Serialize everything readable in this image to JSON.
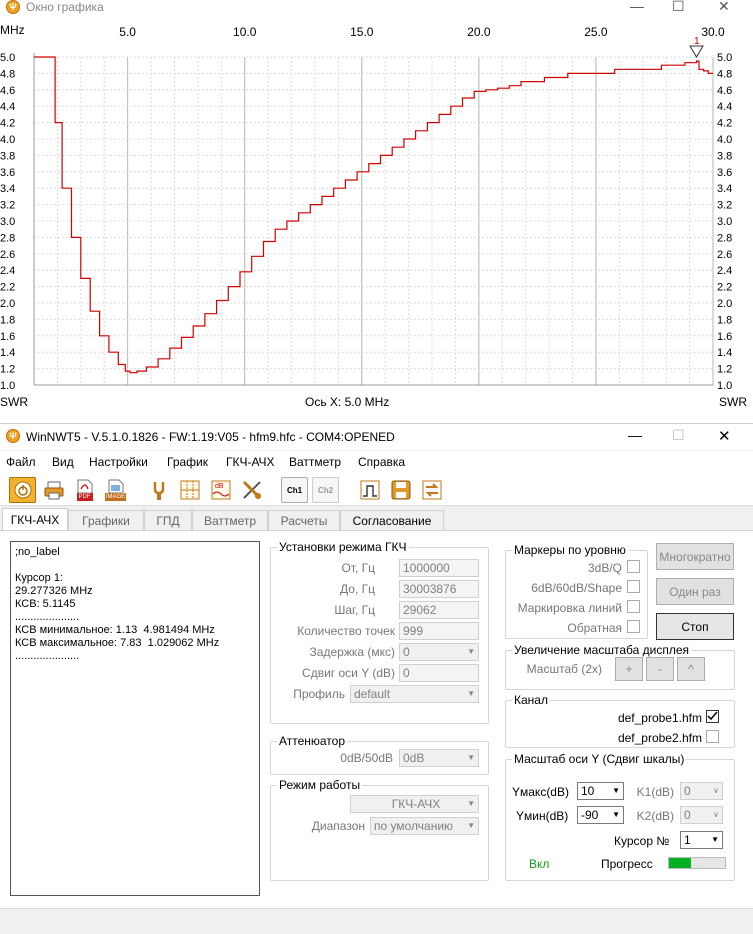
{
  "graph_window": {
    "title": "Окно графика",
    "x_unit": "MHz",
    "left_axis_unit": "SWR",
    "right_axis_unit": "SWR",
    "axis_readout": "Ось X: 5.0 MHz",
    "marker_label": "1"
  },
  "chart_data": {
    "type": "line",
    "xlim": [
      1.0,
      30.0
    ],
    "ylim": [
      1.0,
      5.0
    ],
    "x_ticks": [
      "5.0",
      "10.0",
      "15.0",
      "20.0",
      "25.0",
      "30.0"
    ],
    "y_ticks": [
      "1.0",
      "1.2",
      "1.4",
      "1.6",
      "1.8",
      "2.0",
      "2.2",
      "2.4",
      "2.6",
      "2.8",
      "3.0",
      "3.2",
      "3.4",
      "3.6",
      "3.8",
      "4.0",
      "4.2",
      "4.4",
      "4.6",
      "4.8",
      "5.0"
    ],
    "grid": true,
    "series": [
      {
        "color": "#d00000",
        "x": [
          1.0,
          1.8,
          1.9,
          2.2,
          2.6,
          3.0,
          3.4,
          3.8,
          4.2,
          4.6,
          4.9,
          5.1,
          5.4,
          5.8,
          6.3,
          6.8,
          7.3,
          7.8,
          8.3,
          8.8,
          9.3,
          9.8,
          10.3,
          10.8,
          11.3,
          11.8,
          12.3,
          12.8,
          13.3,
          13.8,
          14.3,
          14.8,
          15.3,
          15.8,
          16.3,
          16.8,
          17.3,
          17.8,
          18.3,
          18.8,
          19.3,
          19.8,
          20.3,
          20.8,
          21.3,
          21.8,
          22.3,
          22.8,
          23.3,
          23.8,
          24.3,
          24.8,
          25.3,
          25.8,
          26.3,
          26.8,
          27.3,
          27.8,
          28.3,
          28.8,
          29.3,
          29.4,
          29.6,
          29.8,
          30.0
        ],
        "y": [
          5.0,
          5.0,
          4.2,
          3.4,
          2.8,
          2.3,
          1.9,
          1.6,
          1.4,
          1.25,
          1.17,
          1.15,
          1.17,
          1.22,
          1.32,
          1.45,
          1.58,
          1.72,
          1.87,
          2.03,
          2.2,
          2.38,
          2.57,
          2.75,
          2.9,
          3.0,
          3.1,
          3.2,
          3.3,
          3.4,
          3.5,
          3.6,
          3.7,
          3.8,
          3.9,
          4.0,
          4.1,
          4.2,
          4.3,
          4.4,
          4.5,
          4.58,
          4.6,
          4.62,
          4.65,
          4.7,
          4.7,
          4.75,
          4.75,
          4.8,
          4.8,
          4.8,
          4.8,
          4.85,
          4.85,
          4.85,
          4.85,
          4.9,
          4.9,
          4.93,
          4.95,
          4.85,
          4.83,
          4.8,
          4.8
        ]
      }
    ]
  },
  "main_window": {
    "title": "WinNWT5 - V.5.1.0.1826 - FW:1.19:V05 - hfm9.hfc - COM4:OPENED",
    "menu": [
      "Файл",
      "Вид",
      "Настройки",
      "График",
      "ГКЧ-АЧХ",
      "Ваттметр",
      "Справка"
    ],
    "toolbar_icons": [
      "power-icon",
      "printer-icon",
      "pdf-icon",
      "image-icon",
      "probe-icon",
      "grid-icon",
      "db-icon",
      "sweep-icon",
      "ch1-icon",
      "ch2-icon",
      "run-icon",
      "save-icon",
      "swap-icon"
    ],
    "toolbar_text": {
      "pdf": "PDF",
      "image": "IMAGE",
      "db": "dB",
      "ch1": "Ch1",
      "ch2": "Ch2"
    },
    "tabs": [
      "ГКЧ-АЧХ",
      "Графики",
      "ГПД",
      "Ваттметр",
      "Расчеты",
      "Согласование"
    ],
    "info_text": ";no_label\n\nКурсор 1:\n29.277326 MHz\nКСВ: 5.1145\n.....................\nКСВ минимальное: 1.13  4.981494 MHz\nКСВ максимальное: 7.83  1.029062 MHz\n....................."
  },
  "sweep": {
    "title": "Установки режима ГКЧ",
    "from_label": "От, Гц",
    "from_value": "1000000",
    "to_label": "До, Гц",
    "to_value": "30003876",
    "step_label": "Шаг, Гц",
    "step_value": "29062",
    "points_label": "Количество точек",
    "points_value": "999",
    "delay_label": "Задержка (мкс)",
    "delay_value": "0",
    "shift_label": "Сдвиг оси Y (dB)",
    "shift_value": "0",
    "profile_label": "Профиль",
    "profile_value": "default"
  },
  "attenuator": {
    "title": "Аттенюатор",
    "label": "0dB/50dB",
    "value": "0dB"
  },
  "mode": {
    "title": "Режим работы",
    "value": "ГКЧ-АЧХ",
    "range_label": "Диапазон",
    "range_value": "по умолчанию"
  },
  "markers": {
    "title": "Маркеры по уровню",
    "q3": "3dB/Q",
    "shape": "6dB/60dB/Shape",
    "lines": "Маркировка линий",
    "reverse": "Обратная"
  },
  "buttons": {
    "multi": "Многократно",
    "once": "Один раз",
    "stop": "Стоп"
  },
  "zoom": {
    "title": "Увеличение масштаба дисплея",
    "label": "Масштаб (2x)",
    "plus": "+",
    "minus": "-",
    "up": "^"
  },
  "channel": {
    "title": "Канал",
    "probe1": "def_probe1.hfm",
    "probe2": "def_probe2.hfm"
  },
  "yscale": {
    "title": "Масштаб оси Y (Сдвиг шкалы)",
    "ymax_label": "Yмакс(dB)",
    "ymax_value": "10",
    "ymin_label": "Yмин(dB)",
    "ymin_value": "-90",
    "k1_label": "K1(dB)",
    "k1_value": "0",
    "k2_label": "K2(dB)",
    "k2_value": "0",
    "cursor_label": "Курсор №",
    "cursor_value": "1",
    "on_label": "Вкл",
    "progress_label": "Прогресс",
    "progress": 0.4
  },
  "colors": {
    "curve": "#d00000",
    "progress": "#06b025",
    "on_label": "#1a9a1a"
  }
}
